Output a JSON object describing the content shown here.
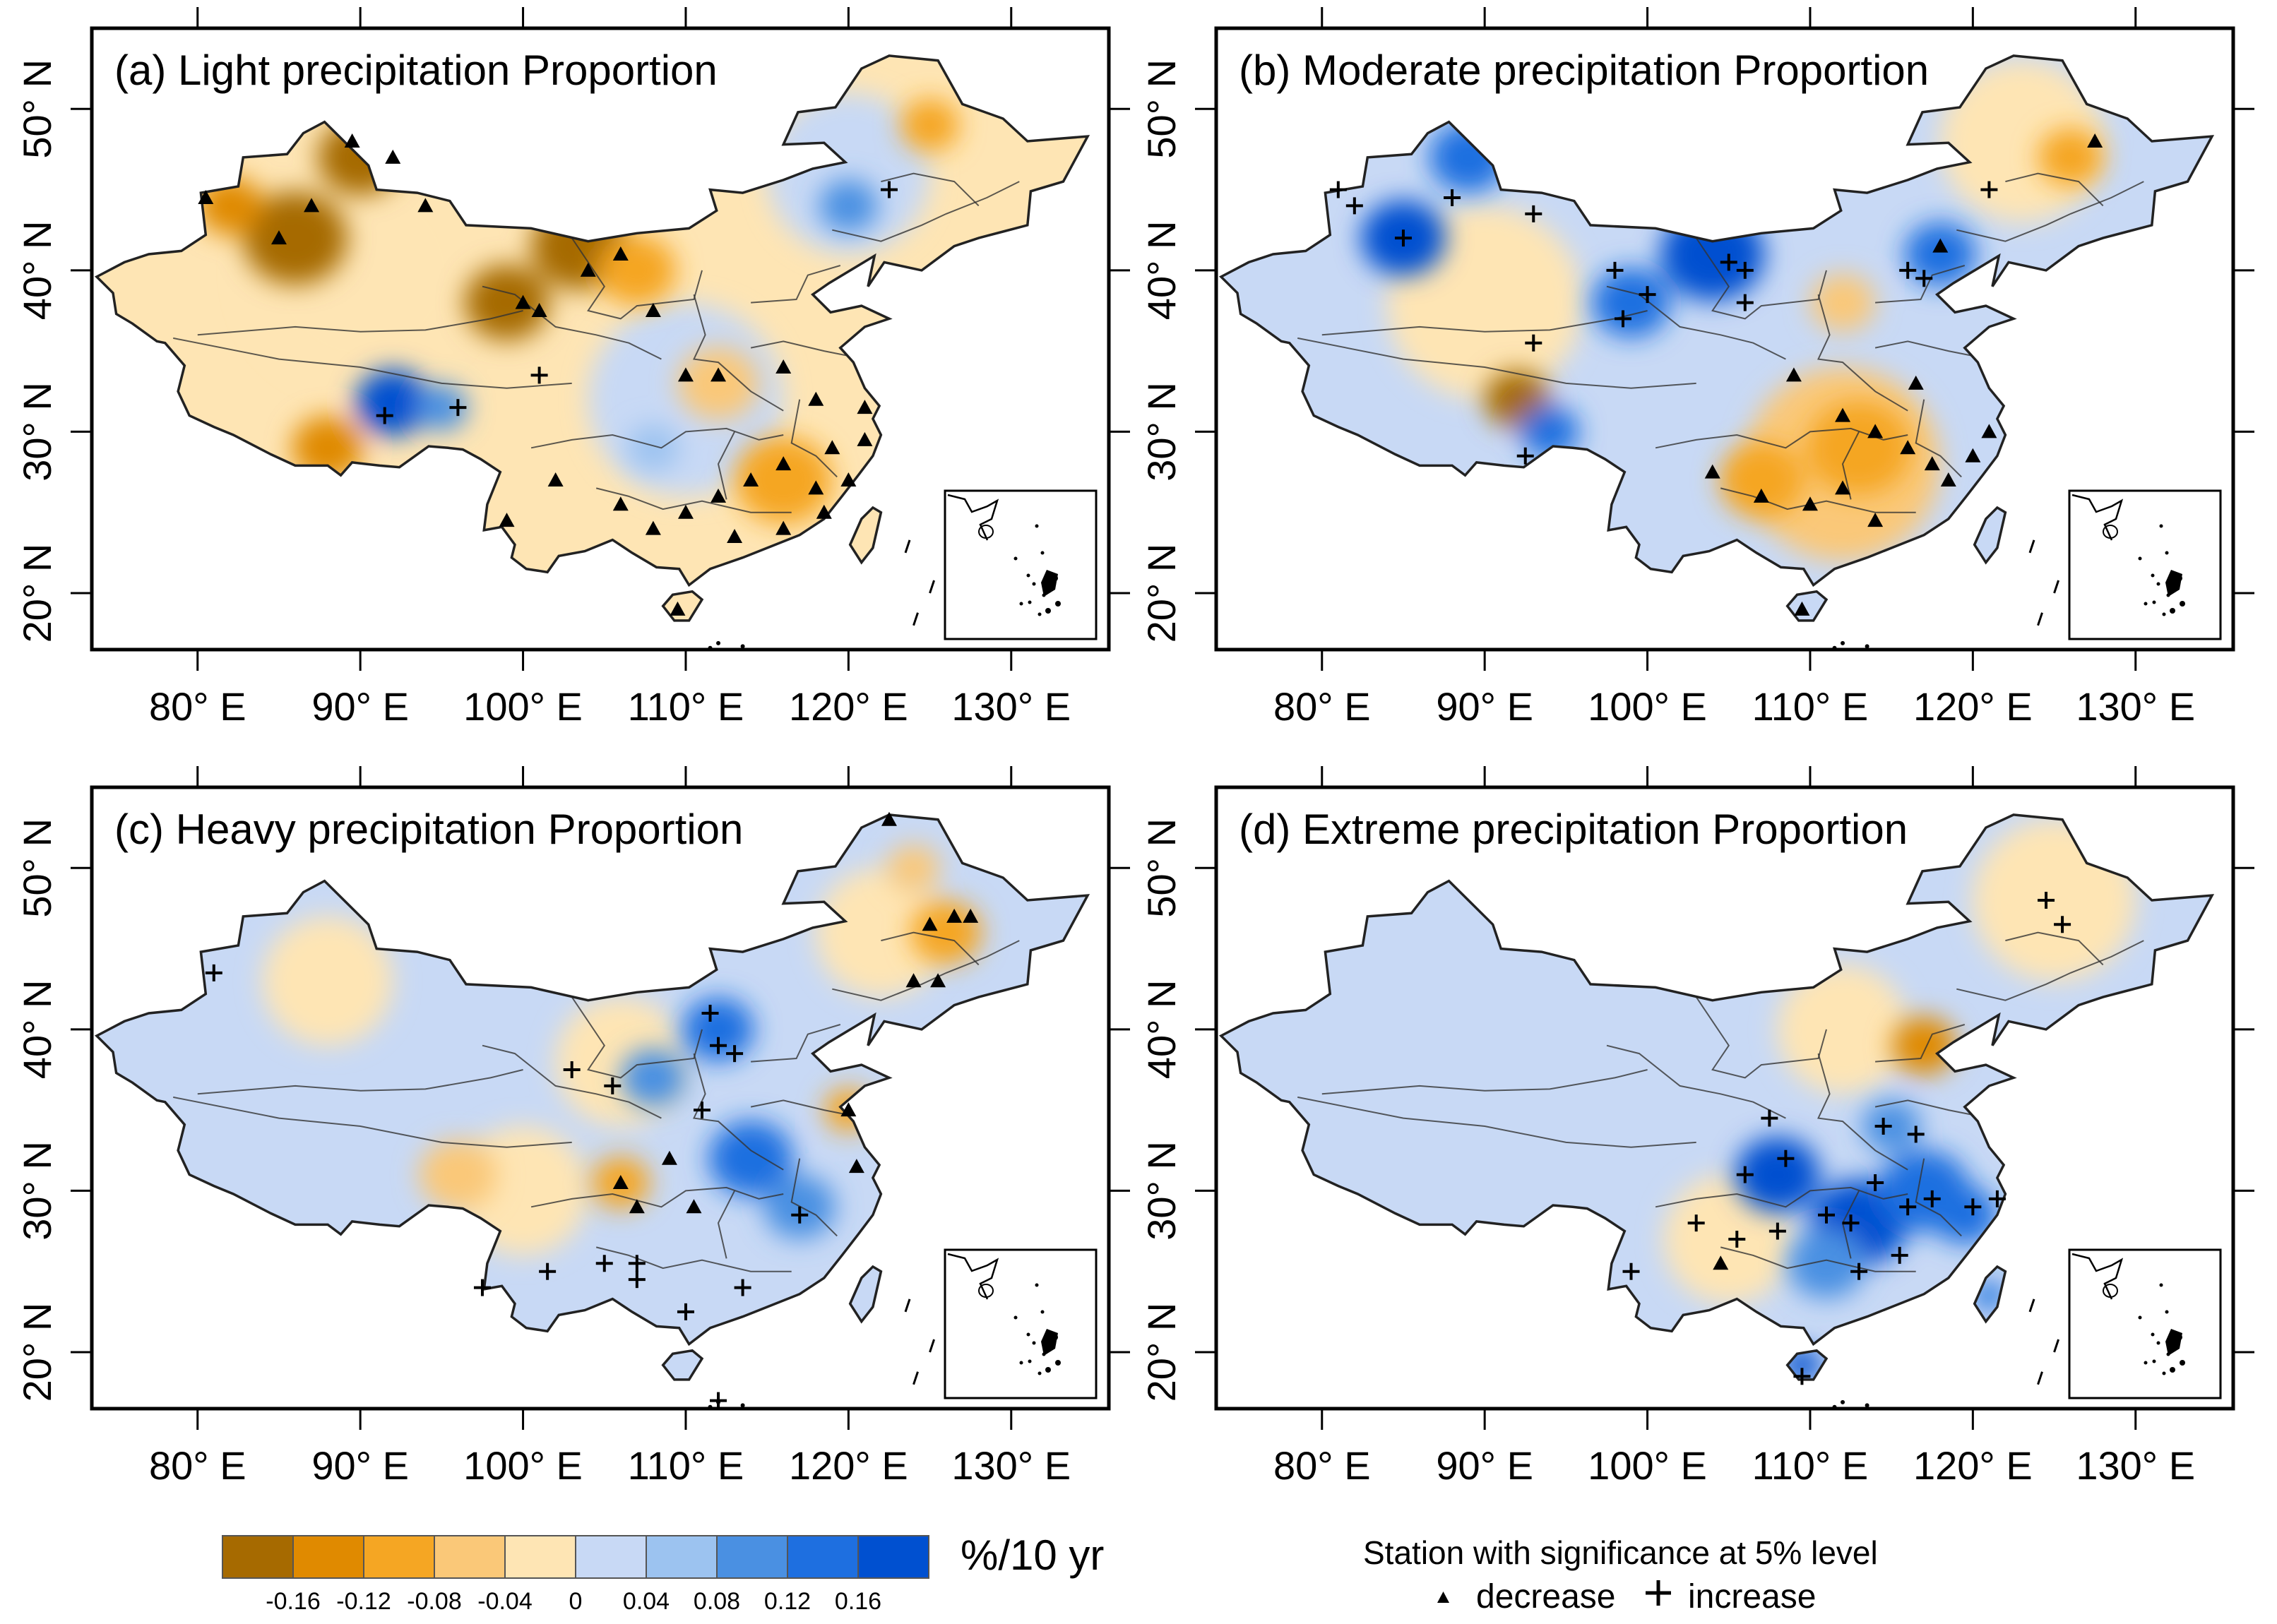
{
  "figure": {
    "panels": [
      {
        "id": "a",
        "title": "(a) Light precipitation Proportion",
        "fills": [
          {
            "cx": 86,
            "cy": 42,
            "r": 3.2,
            "color": "#A66A00"
          },
          {
            "cx": 82,
            "cy": 44,
            "r": 2.0,
            "color": "#E08A00"
          },
          {
            "cx": 90,
            "cy": 47,
            "r": 2.6,
            "color": "#A66A00"
          },
          {
            "cx": 103.5,
            "cy": 41.5,
            "r": 3.0,
            "color": "#A66A00"
          },
          {
            "cx": 99,
            "cy": 38,
            "r": 2.6,
            "color": "#A66A00"
          },
          {
            "cx": 107,
            "cy": 40,
            "r": 2.4,
            "color": "#F5A623"
          },
          {
            "cx": 92,
            "cy": 31.8,
            "r": 2.3,
            "color": "#0050D0"
          },
          {
            "cx": 95,
            "cy": 31.5,
            "r": 1.6,
            "color": "#4A90E2"
          },
          {
            "cx": 88,
            "cy": 29,
            "r": 2.2,
            "color": "#E08A00"
          },
          {
            "cx": 112,
            "cy": 33,
            "r": 2.5,
            "color": "#FAC878"
          },
          {
            "cx": 116,
            "cy": 27,
            "r": 3.0,
            "color": "#F5A623"
          },
          {
            "cx": 120,
            "cy": 44,
            "r": 1.8,
            "color": "#4A90E2"
          },
          {
            "cx": 125,
            "cy": 49,
            "r": 1.8,
            "color": "#F5A623"
          },
          {
            "cx": 108,
            "cy": 29,
            "r": 1.6,
            "color": "#9CC3F0"
          }
        ],
        "markers": [
          {
            "lon": 80.5,
            "lat": 44.5,
            "type": "triangle"
          },
          {
            "lon": 85,
            "lat": 42,
            "type": "triangle"
          },
          {
            "lon": 87,
            "lat": 44,
            "type": "triangle"
          },
          {
            "lon": 89.5,
            "lat": 48,
            "type": "triangle"
          },
          {
            "lon": 92,
            "lat": 47,
            "type": "triangle"
          },
          {
            "lon": 94,
            "lat": 44,
            "type": "triangle"
          },
          {
            "lon": 100,
            "lat": 38,
            "type": "triangle"
          },
          {
            "lon": 101,
            "lat": 37.5,
            "type": "triangle"
          },
          {
            "lon": 104,
            "lat": 40,
            "type": "triangle"
          },
          {
            "lon": 106,
            "lat": 41,
            "type": "triangle"
          },
          {
            "lon": 108,
            "lat": 37.5,
            "type": "triangle"
          },
          {
            "lon": 110,
            "lat": 33.5,
            "type": "triangle"
          },
          {
            "lon": 112,
            "lat": 33.5,
            "type": "triangle"
          },
          {
            "lon": 116,
            "lat": 34,
            "type": "triangle"
          },
          {
            "lon": 118,
            "lat": 32,
            "type": "triangle"
          },
          {
            "lon": 119,
            "lat": 29,
            "type": "triangle"
          },
          {
            "lon": 120,
            "lat": 27,
            "type": "triangle"
          },
          {
            "lon": 118,
            "lat": 26.5,
            "type": "triangle"
          },
          {
            "lon": 116,
            "lat": 28,
            "type": "triangle"
          },
          {
            "lon": 114,
            "lat": 27,
            "type": "triangle"
          },
          {
            "lon": 112,
            "lat": 26,
            "type": "triangle"
          },
          {
            "lon": 110,
            "lat": 25,
            "type": "triangle"
          },
          {
            "lon": 108,
            "lat": 24,
            "type": "triangle"
          },
          {
            "lon": 106,
            "lat": 25.5,
            "type": "triangle"
          },
          {
            "lon": 113,
            "lat": 23.5,
            "type": "triangle"
          },
          {
            "lon": 116,
            "lat": 24,
            "type": "triangle"
          },
          {
            "lon": 118.5,
            "lat": 25,
            "type": "triangle"
          },
          {
            "lon": 121,
            "lat": 29.5,
            "type": "triangle"
          },
          {
            "lon": 121,
            "lat": 31.5,
            "type": "triangle"
          },
          {
            "lon": 102,
            "lat": 27,
            "type": "triangle"
          },
          {
            "lon": 99,
            "lat": 24.5,
            "type": "triangle"
          },
          {
            "lon": 109.5,
            "lat": 19,
            "type": "triangle"
          },
          {
            "lon": 96,
            "lat": 31.5,
            "type": "plus"
          },
          {
            "lon": 91.5,
            "lat": 31,
            "type": "plus"
          },
          {
            "lon": 101,
            "lat": 33.5,
            "type": "plus"
          },
          {
            "lon": 122.5,
            "lat": 45,
            "type": "plus"
          }
        ]
      },
      {
        "id": "b",
        "title": "(b) Moderate precipitation Proportion",
        "fills": [
          {
            "cx": 85,
            "cy": 42,
            "r": 2.6,
            "color": "#0050D0"
          },
          {
            "cx": 89,
            "cy": 47,
            "r": 2.4,
            "color": "#1E6FE0"
          },
          {
            "cx": 104,
            "cy": 41,
            "r": 3.2,
            "color": "#0050D0"
          },
          {
            "cx": 99,
            "cy": 38,
            "r": 2.4,
            "color": "#1E6FE0"
          },
          {
            "cx": 92,
            "cy": 32,
            "r": 2.0,
            "color": "#A66A00"
          },
          {
            "cx": 94,
            "cy": 30,
            "r": 1.8,
            "color": "#1E6FE0"
          },
          {
            "cx": 113,
            "cy": 29,
            "r": 3.2,
            "color": "#F5A623"
          },
          {
            "cx": 107,
            "cy": 27,
            "r": 2.6,
            "color": "#F5A623"
          },
          {
            "cx": 118,
            "cy": 41,
            "r": 2.2,
            "color": "#1E6FE0"
          },
          {
            "cx": 126,
            "cy": 47,
            "r": 2.0,
            "color": "#F5A623"
          },
          {
            "cx": 112,
            "cy": 38,
            "r": 2.0,
            "color": "#FAC878"
          }
        ],
        "markers": [
          {
            "lon": 81,
            "lat": 45,
            "type": "plus"
          },
          {
            "lon": 82,
            "lat": 44,
            "type": "plus"
          },
          {
            "lon": 85,
            "lat": 42,
            "type": "plus"
          },
          {
            "lon": 88,
            "lat": 44.5,
            "type": "plus"
          },
          {
            "lon": 93,
            "lat": 43.5,
            "type": "plus"
          },
          {
            "lon": 98,
            "lat": 40,
            "type": "plus"
          },
          {
            "lon": 100,
            "lat": 38.5,
            "type": "plus"
          },
          {
            "lon": 98.5,
            "lat": 37,
            "type": "plus"
          },
          {
            "lon": 105,
            "lat": 40.5,
            "type": "plus"
          },
          {
            "lon": 106,
            "lat": 40,
            "type": "plus"
          },
          {
            "lon": 106,
            "lat": 38,
            "type": "plus"
          },
          {
            "lon": 116,
            "lat": 40,
            "type": "plus"
          },
          {
            "lon": 117,
            "lat": 39.5,
            "type": "plus"
          },
          {
            "lon": 121,
            "lat": 45,
            "type": "plus"
          },
          {
            "lon": 93,
            "lat": 35.5,
            "type": "plus"
          },
          {
            "lon": 92.5,
            "lat": 28.5,
            "type": "plus"
          },
          {
            "lon": 109,
            "lat": 33.5,
            "type": "triangle"
          },
          {
            "lon": 112,
            "lat": 31,
            "type": "triangle"
          },
          {
            "lon": 114,
            "lat": 30,
            "type": "triangle"
          },
          {
            "lon": 116,
            "lat": 29,
            "type": "triangle"
          },
          {
            "lon": 117.5,
            "lat": 28,
            "type": "triangle"
          },
          {
            "lon": 118.5,
            "lat": 27,
            "type": "triangle"
          },
          {
            "lon": 120,
            "lat": 28.5,
            "type": "triangle"
          },
          {
            "lon": 112,
            "lat": 26.5,
            "type": "triangle"
          },
          {
            "lon": 110,
            "lat": 25.5,
            "type": "triangle"
          },
          {
            "lon": 107,
            "lat": 26,
            "type": "triangle"
          },
          {
            "lon": 104,
            "lat": 27.5,
            "type": "triangle"
          },
          {
            "lon": 114,
            "lat": 24.5,
            "type": "triangle"
          },
          {
            "lon": 121,
            "lat": 30,
            "type": "triangle"
          },
          {
            "lon": 116.5,
            "lat": 33,
            "type": "triangle"
          },
          {
            "lon": 127.5,
            "lat": 48,
            "type": "triangle"
          },
          {
            "lon": 118,
            "lat": 41.5,
            "type": "triangle"
          },
          {
            "lon": 109.5,
            "lat": 19,
            "type": "triangle"
          }
        ]
      },
      {
        "id": "c",
        "title": "(c) Heavy precipitation Proportion",
        "fills": [
          {
            "cx": 112,
            "cy": 40,
            "r": 2.2,
            "color": "#1E6FE0"
          },
          {
            "cx": 108,
            "cy": 37,
            "r": 2.0,
            "color": "#4A90E2"
          },
          {
            "cx": 114,
            "cy": 32,
            "r": 2.6,
            "color": "#1E6FE0"
          },
          {
            "cx": 117,
            "cy": 29,
            "r": 2.2,
            "color": "#4A90E2"
          },
          {
            "cx": 106,
            "cy": 30.5,
            "r": 1.8,
            "color": "#F5A623"
          },
          {
            "cx": 96,
            "cy": 31,
            "r": 2.4,
            "color": "#FAC878"
          },
          {
            "cx": 126,
            "cy": 46,
            "r": 2.2,
            "color": "#F5A623"
          },
          {
            "cx": 124,
            "cy": 50,
            "r": 1.6,
            "color": "#FAC878"
          },
          {
            "cx": 120,
            "cy": 35,
            "r": 1.5,
            "color": "#F5A623"
          }
        ],
        "markers": [
          {
            "lon": 81,
            "lat": 43.5,
            "type": "plus"
          },
          {
            "lon": 103,
            "lat": 37.5,
            "type": "plus"
          },
          {
            "lon": 105.5,
            "lat": 36.5,
            "type": "plus"
          },
          {
            "lon": 111.5,
            "lat": 41,
            "type": "plus"
          },
          {
            "lon": 112,
            "lat": 39,
            "type": "plus"
          },
          {
            "lon": 113,
            "lat": 38.5,
            "type": "plus"
          },
          {
            "lon": 111,
            "lat": 35,
            "type": "plus"
          },
          {
            "lon": 117,
            "lat": 28.5,
            "type": "plus"
          },
          {
            "lon": 101.5,
            "lat": 25,
            "type": "plus"
          },
          {
            "lon": 105,
            "lat": 25.5,
            "type": "plus"
          },
          {
            "lon": 107,
            "lat": 25.5,
            "type": "plus"
          },
          {
            "lon": 107,
            "lat": 24.5,
            "type": "plus"
          },
          {
            "lon": 110,
            "lat": 22.5,
            "type": "plus"
          },
          {
            "lon": 113.5,
            "lat": 24,
            "type": "plus"
          },
          {
            "lon": 97.5,
            "lat": 24,
            "type": "plus"
          },
          {
            "lon": 112,
            "lat": 17,
            "type": "plus"
          },
          {
            "lon": 106,
            "lat": 30.5,
            "type": "triangle"
          },
          {
            "lon": 107,
            "lat": 29,
            "type": "triangle"
          },
          {
            "lon": 109,
            "lat": 32,
            "type": "triangle"
          },
          {
            "lon": 110.5,
            "lat": 29,
            "type": "triangle"
          },
          {
            "lon": 120,
            "lat": 35,
            "type": "triangle"
          },
          {
            "lon": 125,
            "lat": 46.5,
            "type": "triangle"
          },
          {
            "lon": 126.5,
            "lat": 47,
            "type": "triangle"
          },
          {
            "lon": 127.5,
            "lat": 47,
            "type": "triangle"
          },
          {
            "lon": 124,
            "lat": 43,
            "type": "triangle"
          },
          {
            "lon": 125.5,
            "lat": 43,
            "type": "triangle"
          },
          {
            "lon": 122.5,
            "lat": 53,
            "type": "triangle"
          },
          {
            "lon": 120.5,
            "lat": 31.5,
            "type": "triangle"
          }
        ]
      },
      {
        "id": "d",
        "title": "(d) Extreme precipitation Proportion",
        "fills": [
          {
            "cx": 108,
            "cy": 31,
            "r": 2.6,
            "color": "#0050D0"
          },
          {
            "cx": 113,
            "cy": 28,
            "r": 3.0,
            "color": "#0050D0"
          },
          {
            "cx": 117,
            "cy": 30,
            "r": 2.8,
            "color": "#1E6FE0"
          },
          {
            "cx": 119.5,
            "cy": 28.5,
            "r": 2.0,
            "color": "#1E6FE0"
          },
          {
            "cx": 111,
            "cy": 25.5,
            "r": 2.4,
            "color": "#4A90E2"
          },
          {
            "cx": 115,
            "cy": 34,
            "r": 1.8,
            "color": "#4A90E2"
          },
          {
            "cx": 117,
            "cy": 39,
            "r": 2.0,
            "color": "#E08A00"
          },
          {
            "cx": 121,
            "cy": 23.5,
            "r": 1.0,
            "color": "#1E6FE0"
          },
          {
            "cx": 109.5,
            "cy": 19.2,
            "r": 1.2,
            "color": "#0050D0"
          }
        ],
        "markers": [
          {
            "lon": 106,
            "lat": 31,
            "type": "plus"
          },
          {
            "lon": 107.5,
            "lat": 34.5,
            "type": "plus"
          },
          {
            "lon": 108.5,
            "lat": 32,
            "type": "plus"
          },
          {
            "lon": 111,
            "lat": 28.5,
            "type": "plus"
          },
          {
            "lon": 112.5,
            "lat": 28,
            "type": "plus"
          },
          {
            "lon": 114,
            "lat": 30.5,
            "type": "plus"
          },
          {
            "lon": 116,
            "lat": 29,
            "type": "plus"
          },
          {
            "lon": 117.5,
            "lat": 29.5,
            "type": "plus"
          },
          {
            "lon": 120,
            "lat": 29,
            "type": "plus"
          },
          {
            "lon": 121.5,
            "lat": 29.5,
            "type": "plus"
          },
          {
            "lon": 113,
            "lat": 25,
            "type": "plus"
          },
          {
            "lon": 115.5,
            "lat": 26,
            "type": "plus"
          },
          {
            "lon": 108,
            "lat": 27.5,
            "type": "plus"
          },
          {
            "lon": 105.5,
            "lat": 27,
            "type": "plus"
          },
          {
            "lon": 103,
            "lat": 28,
            "type": "plus"
          },
          {
            "lon": 99,
            "lat": 25,
            "type": "plus"
          },
          {
            "lon": 114.5,
            "lat": 34,
            "type": "plus"
          },
          {
            "lon": 116.5,
            "lat": 33.5,
            "type": "plus"
          },
          {
            "lon": 124.5,
            "lat": 48,
            "type": "plus"
          },
          {
            "lon": 125.5,
            "lat": 46.5,
            "type": "plus"
          },
          {
            "lon": 109.5,
            "lat": 18.5,
            "type": "plus"
          },
          {
            "lon": 104.5,
            "lat": 25.5,
            "type": "triangle"
          }
        ]
      }
    ],
    "x_ticks": [
      {
        "lon": 80,
        "label": "80° E"
      },
      {
        "lon": 90,
        "label": "90° E"
      },
      {
        "lon": 100,
        "label": "100° E"
      },
      {
        "lon": 110,
        "label": "110° E"
      },
      {
        "lon": 120,
        "label": "120° E"
      },
      {
        "lon": 130,
        "label": "130° E"
      }
    ],
    "y_ticks": [
      {
        "lat": 20,
        "label": "20° N"
      },
      {
        "lat": 30,
        "label": "30° N"
      },
      {
        "lat": 40,
        "label": "40° N"
      },
      {
        "lat": 50,
        "label": "50° N"
      }
    ],
    "extent": {
      "lon_min": 73.5,
      "lon_max": 136,
      "lat_min": 16.5,
      "lat_max": 55
    }
  },
  "legend": {
    "colors": [
      "#A66A00",
      "#E08A00",
      "#F5A623",
      "#FAC878",
      "#FEE5B4",
      "#C8D9F5",
      "#9CC3F0",
      "#4A90E2",
      "#1E6FE0",
      "#0050D0"
    ],
    "labels": [
      "-0.16",
      "-0.12",
      "-0.08",
      "-0.04",
      "0",
      "0.04",
      "0.08",
      "0.12",
      "0.16"
    ],
    "unit": "%/10 yr"
  },
  "significance": {
    "title": "Station with significance at 5% level",
    "decrease_label": "decrease",
    "increase_label": "increase"
  }
}
